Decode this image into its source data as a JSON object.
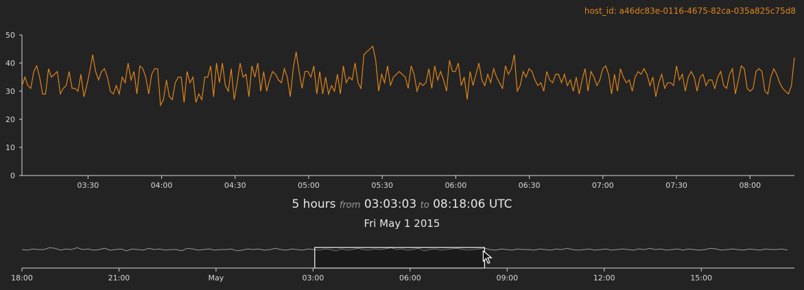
{
  "header": {
    "host_id": "host_id: a46dc83e-0116-4675-82ca-035a825c75d8"
  },
  "range": {
    "duration": "5 hours",
    "from_word": "from",
    "from_time": "03:03:03",
    "to_word": "to",
    "to_time": "08:18:06 UTC",
    "date": "Fri May 1 2015"
  },
  "colors": {
    "series": "#e0851b",
    "overview_series": "#9a9a9a",
    "axis": "#d8d8d8",
    "brush": "#ffffff"
  },
  "icons": {
    "cursor": "cursor-arrow-icon"
  },
  "chart_data": [
    {
      "type": "line",
      "title": "",
      "xlabel": "",
      "ylabel": "",
      "x_range": [
        "03:03:03",
        "08:18:06"
      ],
      "ylim": [
        0,
        50
      ],
      "y_ticks": [
        0,
        10,
        20,
        30,
        40,
        50
      ],
      "x_ticks": [
        "03:30",
        "04:00",
        "04:30",
        "05:00",
        "05:30",
        "06:00",
        "06:30",
        "07:00",
        "07:30",
        "08:00"
      ],
      "grid": false,
      "series": [
        {
          "values": [
            32,
            35,
            32,
            31,
            37,
            39,
            35,
            29,
            29,
            38,
            35,
            36,
            37,
            29,
            31,
            32,
            37,
            31,
            31,
            30,
            36,
            28,
            32,
            37,
            43,
            37,
            34,
            37,
            38,
            35,
            30,
            29,
            32,
            29,
            35,
            33,
            40,
            34,
            37,
            29,
            39,
            38,
            35,
            29,
            36,
            38,
            38,
            25,
            27,
            34,
            28,
            27,
            33,
            35,
            35,
            26,
            37,
            33,
            35,
            26,
            29,
            27,
            35,
            35,
            39,
            28,
            40,
            33,
            40,
            32,
            30,
            38,
            27,
            33,
            40,
            35,
            36,
            28,
            39,
            35,
            40,
            30,
            37,
            30,
            34,
            37,
            36,
            34,
            33,
            38,
            35,
            28,
            38,
            44,
            37,
            31,
            37,
            37,
            35,
            39,
            29,
            37,
            29,
            35,
            29,
            32,
            30,
            36,
            29,
            39,
            33,
            35,
            34,
            40,
            33,
            31,
            43,
            44,
            45,
            46,
            41,
            30,
            36,
            33,
            39,
            32,
            35,
            36,
            37,
            36,
            35,
            31,
            39,
            36,
            30,
            33,
            32,
            33,
            38,
            31,
            39,
            34,
            37,
            34,
            30,
            41,
            37,
            37,
            40,
            32,
            35,
            27,
            37,
            32,
            36,
            40,
            34,
            32,
            36,
            33,
            38,
            35,
            33,
            31,
            39,
            36,
            38,
            43,
            30,
            32,
            37,
            35,
            38,
            37,
            34,
            32,
            33,
            30,
            37,
            34,
            33,
            36,
            36,
            33,
            36,
            32,
            34,
            30,
            35,
            29,
            34,
            38,
            30,
            37,
            35,
            32,
            34,
            38,
            39,
            36,
            29,
            36,
            30,
            38,
            35,
            33,
            34,
            30,
            35,
            37,
            36,
            38,
            36,
            32,
            35,
            28,
            33,
            36,
            31,
            33,
            33,
            32,
            39,
            34,
            36,
            30,
            35,
            37,
            35,
            30,
            35,
            36,
            32,
            34,
            34,
            31,
            35,
            37,
            32,
            31,
            36,
            38,
            29,
            34,
            39,
            38,
            31,
            30,
            31,
            37,
            38,
            37,
            30,
            29,
            35,
            38,
            36,
            33,
            31,
            30,
            29,
            32,
            42
          ]
        }
      ]
    },
    {
      "type": "line",
      "title": "",
      "x_ticks": [
        "18:00",
        "21:00",
        "May",
        "03:00",
        "06:00",
        "09:00",
        "12:00",
        "15:00"
      ],
      "x_range": [
        "2015-04-30 18:00",
        "2015-05-01 17:40"
      ],
      "brush": {
        "from": "03:03:03",
        "to": "08:18:06"
      },
      "grid": false,
      "series": [
        {
          "values": [
            35,
            34,
            36,
            35,
            35,
            38,
            37,
            34,
            36,
            35,
            38,
            35,
            36,
            34,
            35,
            37,
            34,
            35,
            36,
            33,
            36,
            35,
            34,
            37,
            35,
            36,
            34,
            35,
            35,
            33,
            37,
            36,
            34,
            35,
            36,
            34,
            35,
            35,
            36,
            33,
            34,
            36,
            35,
            36,
            34,
            35,
            37,
            35,
            34,
            36,
            35,
            34,
            36,
            35,
            34,
            36,
            35,
            33,
            36,
            34,
            35,
            37,
            35,
            34,
            36,
            35,
            36,
            38,
            35,
            36,
            34,
            35,
            37,
            33,
            35,
            36,
            34,
            35,
            36,
            37,
            35,
            34,
            35,
            36,
            37,
            35,
            34,
            36,
            35,
            34,
            36,
            35,
            35,
            34,
            36,
            35,
            34,
            36,
            35,
            37,
            35,
            34,
            35,
            36,
            34,
            35,
            36,
            34,
            35,
            36,
            35,
            34,
            36,
            35,
            37,
            35,
            36,
            34,
            35,
            36,
            34,
            36,
            35,
            34,
            35,
            37,
            36,
            34,
            35,
            36,
            35,
            34,
            36,
            35,
            34,
            36,
            35,
            35,
            36,
            34
          ]
        }
      ]
    }
  ]
}
